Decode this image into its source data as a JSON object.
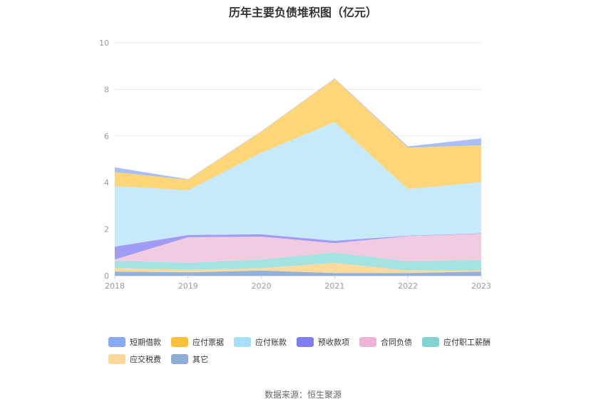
{
  "chart_data": {
    "type": "area",
    "stacked": true,
    "title": "历年主要负债堆积图（亿元）",
    "x": [
      "2018",
      "2019",
      "2020",
      "2021",
      "2022",
      "2023"
    ],
    "ylim": [
      0,
      10
    ],
    "yticks": [
      0,
      2,
      4,
      6,
      8,
      10
    ],
    "grid": true,
    "legend_position": "bottom",
    "series": [
      {
        "name": "其它",
        "color": "#92b1dc",
        "values": [
          0.18,
          0.15,
          0.22,
          0.12,
          0.12,
          0.18
        ]
      },
      {
        "name": "应交税费",
        "color": "#fedb9c",
        "values": [
          0.15,
          0.1,
          0.1,
          0.43,
          0.1,
          0.05
        ]
      },
      {
        "name": "应付职工薪酬",
        "color": "#a5e3e0",
        "values": [
          0.32,
          0.3,
          0.38,
          0.45,
          0.4,
          0.45
        ]
      },
      {
        "name": "合同负债",
        "color": "#f1cbe0",
        "values": [
          0.05,
          1.1,
          0.98,
          0.4,
          1.08,
          1.12
        ]
      },
      {
        "name": "预收款项",
        "color": "#a09bf5",
        "values": [
          0.55,
          0.1,
          0.1,
          0.1,
          0.02,
          0.02
        ]
      },
      {
        "name": "应付账款",
        "color": "#c6e9fb",
        "values": [
          2.6,
          1.92,
          3.5,
          5.1,
          2.0,
          2.2
        ]
      },
      {
        "name": "应付票据",
        "color": "#fed577",
        "values": [
          0.6,
          0.45,
          0.9,
          1.85,
          1.78,
          1.58
        ]
      },
      {
        "name": "短期借款",
        "color": "#a9bff9",
        "values": [
          0.2,
          0.02,
          0.02,
          0.02,
          0.05,
          0.3
        ]
      }
    ]
  },
  "legend": [
    {
      "name": "短期借款",
      "color": "#8aa8f8"
    },
    {
      "name": "应付票据",
      "color": "#fcc03b"
    },
    {
      "name": "应付账款",
      "color": "#a8defa"
    },
    {
      "name": "预收款项",
      "color": "#7f7ef0"
    },
    {
      "name": "合同负债",
      "color": "#ebb6d6"
    },
    {
      "name": "应付职工薪酬",
      "color": "#83d5d3"
    },
    {
      "name": "应交税费",
      "color": "#fdd79a"
    },
    {
      "name": "其它",
      "color": "#8fadd7"
    }
  ],
  "source": "数据来源：恒生聚源"
}
